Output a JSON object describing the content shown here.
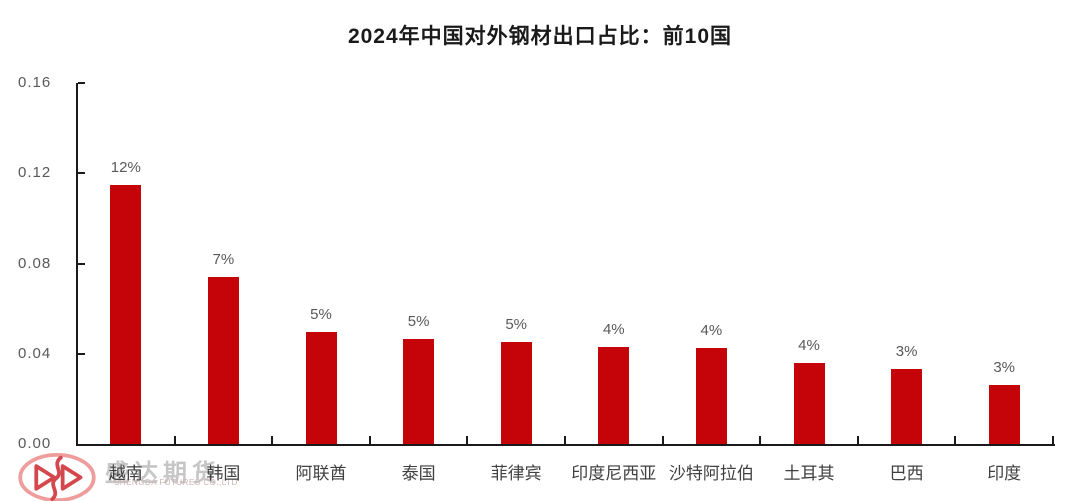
{
  "title": "2024年中国对外钢材出口占比：前10国",
  "watermark": {
    "cn": "盛达期货",
    "en": "SHENGDA FUTURES CO.,LTD",
    "logo_icon": "shengda-futures-logo"
  },
  "colors": {
    "bar": "#c50409",
    "axis": "#1a1a1a",
    "value_label": "#595959",
    "tick_label": "#595959",
    "category_label": "#404040",
    "watermark_text": "#c6c6c6",
    "logo_ring": "#ee9c9c",
    "logo_mark": "#d4474d"
  },
  "chart_data": {
    "type": "bar",
    "title": "2024年中国对外钢材出口占比：前10国",
    "categories": [
      "越南",
      "韩国",
      "阿联酋",
      "泰国",
      "菲律宾",
      "印度尼西亚",
      "沙特阿拉伯",
      "土耳其",
      "巴西",
      "印度"
    ],
    "values": [
      0.115,
      0.074,
      0.0495,
      0.0465,
      0.0451,
      0.0432,
      0.0427,
      0.0358,
      0.0332,
      0.0263
    ],
    "data_labels": [
      "12%",
      "7%",
      "5%",
      "5%",
      "5%",
      "4%",
      "4%",
      "4%",
      "3%",
      "3%"
    ],
    "y_ticks": [
      "0.00",
      "0.04",
      "0.08",
      "0.12",
      "0.16"
    ],
    "ylim": [
      0,
      0.16
    ],
    "xlabel": "",
    "ylabel": "",
    "grid": false,
    "legend": false
  }
}
